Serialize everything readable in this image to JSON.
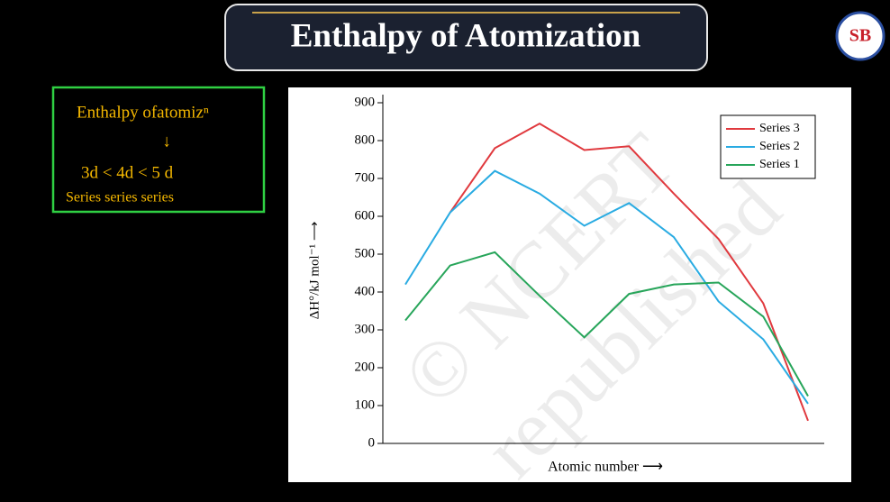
{
  "header": {
    "title": "Enthalpy of Atomization"
  },
  "logo": {
    "text": "SB"
  },
  "notes": {
    "lines": [
      "Enthalpy ofatomizⁿ",
      "↓",
      "3d < 4d < 5 d",
      "Series series series"
    ]
  },
  "watermark": {
    "lines": [
      "© NCERT",
      "republished"
    ]
  },
  "chart_data": {
    "type": "line",
    "xlabel": "Atomic number ⟶",
    "ylabel": "ΔH°/kJ mol⁻¹ ⟶",
    "categories": [
      null,
      null,
      null,
      null,
      null,
      null,
      null,
      null,
      null,
      null
    ],
    "series": [
      {
        "name": "Series 3",
        "color": "#e0393e",
        "values": [
          null,
          610,
          780,
          845,
          775,
          785,
          660,
          540,
          370,
          60
        ]
      },
      {
        "name": "Series 2",
        "color": "#29abe2",
        "values": [
          420,
          610,
          720,
          660,
          575,
          635,
          545,
          375,
          275,
          105
        ]
      },
      {
        "name": "Series 1",
        "color": "#27a55a",
        "values": [
          325,
          470,
          505,
          390,
          280,
          395,
          420,
          425,
          335,
          125
        ]
      }
    ],
    "ylim": [
      0,
      900
    ],
    "yticks": [
      0,
      100,
      200,
      300,
      400,
      500,
      600,
      700,
      800,
      900
    ],
    "legend": "upper right"
  }
}
